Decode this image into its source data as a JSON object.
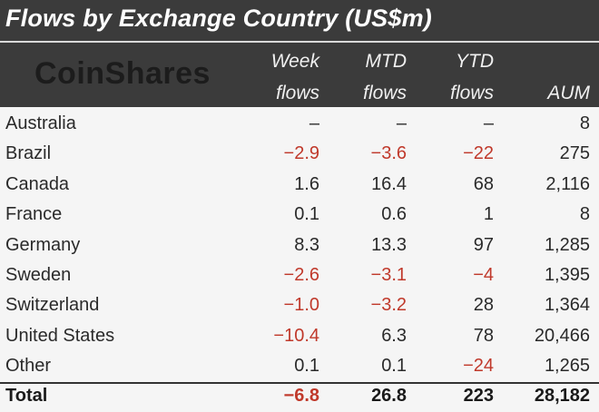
{
  "title": "Flows by Exchange Country (US$m)",
  "logo_text": "CoinShares",
  "columns": [
    {
      "line1": "Week",
      "line2": "flows"
    },
    {
      "line1": "MTD",
      "line2": "flows"
    },
    {
      "line1": "YTD",
      "line2": "flows"
    },
    {
      "line1": "",
      "line2": "AUM"
    }
  ],
  "colors": {
    "header_bg": "#3b3b3b",
    "negative": "#c0392b",
    "text": "#2a2a2a"
  },
  "chart_data": {
    "type": "table",
    "title": "Flows by Exchange Country (US$m)",
    "headers": [
      "",
      "Week flows",
      "MTD flows",
      "YTD flows",
      "AUM"
    ],
    "rows": [
      {
        "country": "Australia",
        "week": "–",
        "mtd": "–",
        "ytd": "–",
        "aum": "8"
      },
      {
        "country": "Brazil",
        "week": "-2.9",
        "mtd": "-3.6",
        "ytd": "-22",
        "aum": "275"
      },
      {
        "country": "Canada",
        "week": "1.6",
        "mtd": "16.4",
        "ytd": "68",
        "aum": "2,116"
      },
      {
        "country": "France",
        "week": "0.1",
        "mtd": "0.6",
        "ytd": "1",
        "aum": "8"
      },
      {
        "country": "Germany",
        "week": "8.3",
        "mtd": "13.3",
        "ytd": "97",
        "aum": "1,285"
      },
      {
        "country": "Sweden",
        "week": "-2.6",
        "mtd": "-3.1",
        "ytd": "-4",
        "aum": "1,395"
      },
      {
        "country": "Switzerland",
        "week": "-1.0",
        "mtd": "-3.2",
        "ytd": "28",
        "aum": "1,364"
      },
      {
        "country": "United States",
        "week": "-10.4",
        "mtd": "6.3",
        "ytd": "78",
        "aum": "20,466"
      },
      {
        "country": "Other",
        "week": "0.1",
        "mtd": "0.1",
        "ytd": "-24",
        "aum": "1,265"
      }
    ],
    "total": {
      "country": "Total",
      "week": "-6.8",
      "mtd": "26.8",
      "ytd": "223",
      "aum": "28,182"
    }
  }
}
